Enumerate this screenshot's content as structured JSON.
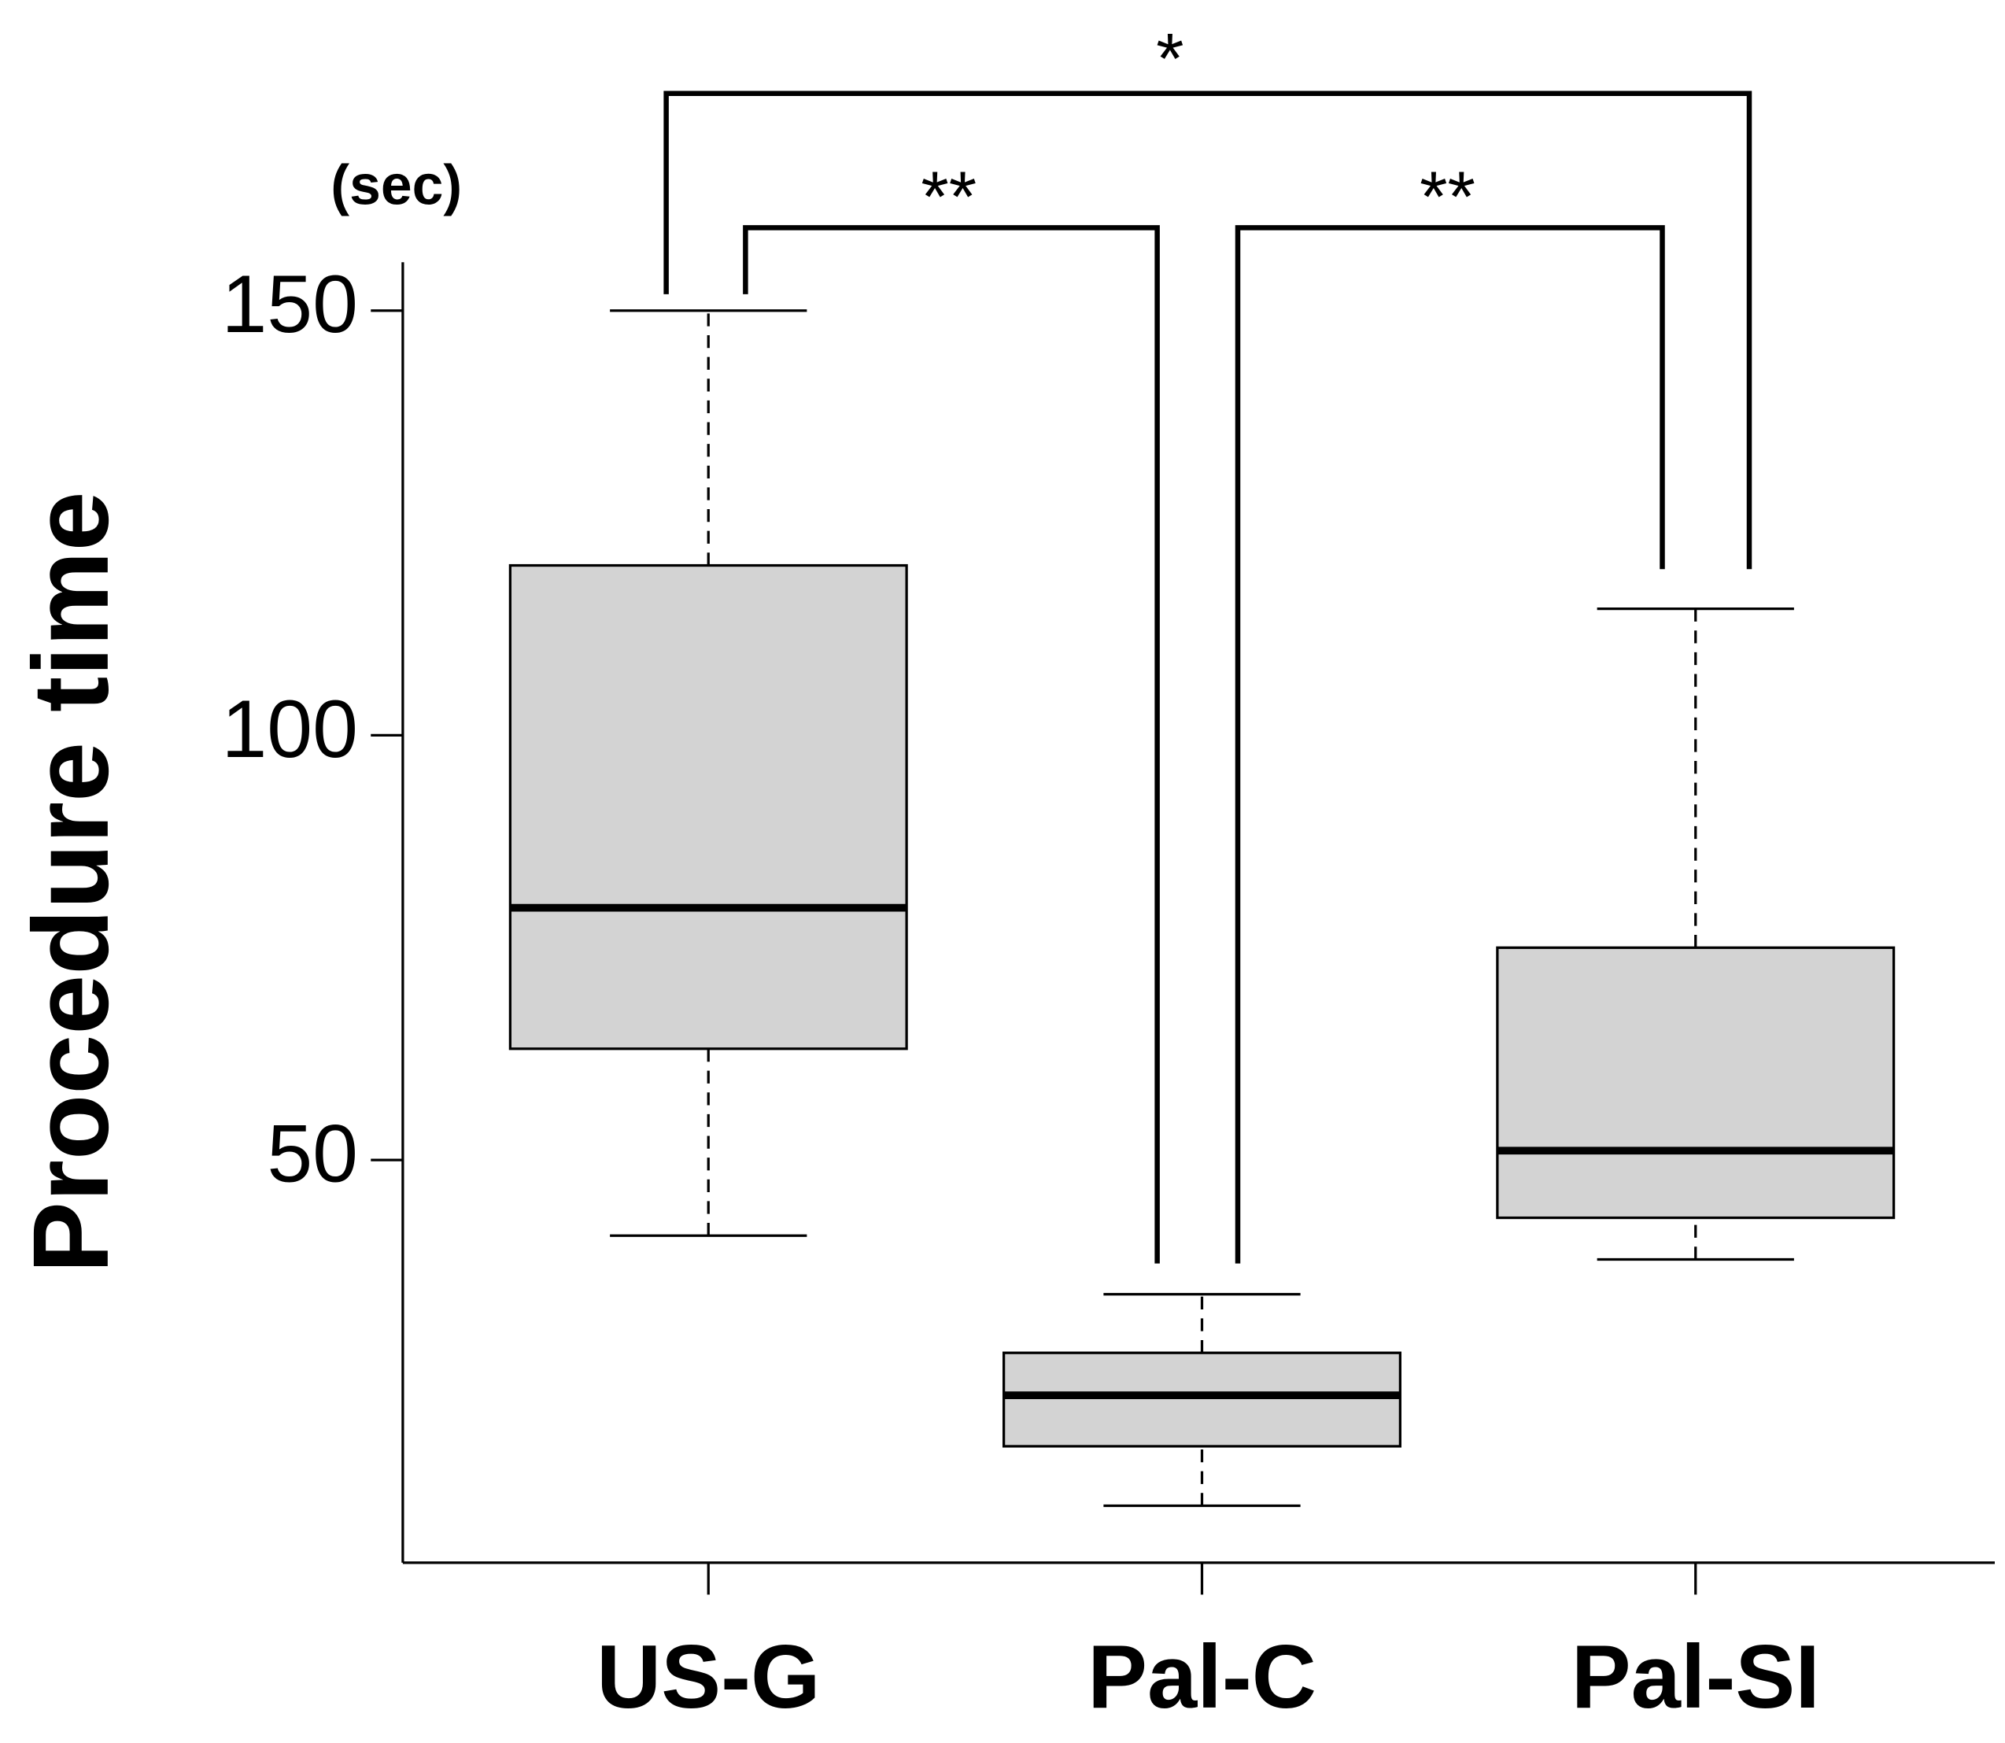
{
  "chart_data": {
    "type": "box",
    "unit_label": "(sec)",
    "y_label": "Procedure time",
    "categories": [
      "US-G",
      "Pal-C",
      "Pal-SI"
    ],
    "min": [
      41.1,
      9.3,
      38.3
    ],
    "q1": [
      63.1,
      16.3,
      43.2
    ],
    "median": [
      79.7,
      22.3,
      51.1
    ],
    "q3": [
      120,
      27.3,
      75
    ],
    "max": [
      150,
      34.2,
      114.9
    ],
    "color": "#d3d3d3",
    "ylim": [
      2.6,
      155.7
    ],
    "yticks": [
      50,
      100,
      150
    ],
    "annotations": [
      "*",
      "**",
      "**"
    ]
  }
}
